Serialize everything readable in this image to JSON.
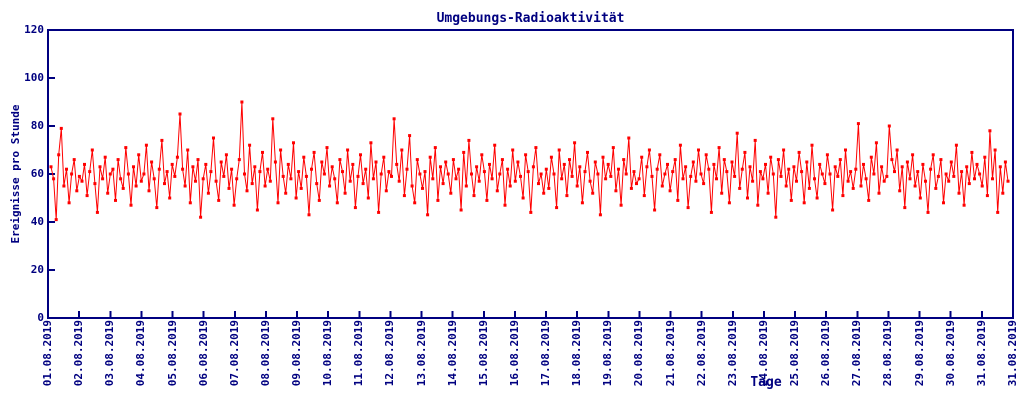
{
  "chart_data": {
    "type": "line",
    "style": "linespoints",
    "marker": "square",
    "title": "Umgebungs-Radioaktivität",
    "xlabel": "Tage",
    "ylabel": "Ereignisse pro Stunde",
    "ylim": [
      0,
      120
    ],
    "yticks": [
      0,
      20,
      40,
      60,
      80,
      100,
      120
    ],
    "grid": false,
    "legend": "none",
    "background": "#ffffff",
    "axis_color": "#000080",
    "xtick_labels": [
      "01.08.2019",
      "02.08.2019",
      "03.08.2019",
      "04.08.2019",
      "05.08.2019",
      "06.08.2019",
      "07.08.2019",
      "08.08.2019",
      "09.08.2019",
      "10.08.2019",
      "11.08.2019",
      "12.08.2019",
      "13.08.2019",
      "14.08.2019",
      "15.08.2019",
      "16.08.2019",
      "17.08.2019",
      "18.08.2019",
      "19.08.2019",
      "20.08.2019",
      "21.08.2019",
      "22.08.2019",
      "23.08.2019",
      "24.08.2019",
      "25.08.2019",
      "26.08.2019",
      "27.08.2019",
      "28.08.2019",
      "29.08.2019",
      "30.08.2019",
      "31.08.2019",
      "31.08.2019"
    ],
    "series": [
      {
        "name": "Umgebungs-Radioaktivität",
        "color": "#ff0000",
        "points_per_day": 12,
        "values": [
          63,
          58,
          41,
          68,
          79,
          55,
          62,
          48,
          60,
          66,
          53,
          59,
          57,
          64,
          51,
          61,
          70,
          56,
          44,
          63,
          58,
          67,
          52,
          60,
          62,
          49,
          66,
          58,
          54,
          71,
          60,
          47,
          63,
          55,
          68,
          57,
          60,
          72,
          53,
          65,
          58,
          46,
          62,
          74,
          56,
          61,
          50,
          64,
          59,
          67,
          85,
          62,
          55,
          70,
          48,
          63,
          57,
          66,
          42,
          58,
          64,
          52,
          61,
          75,
          57,
          49,
          65,
          59,
          68,
          54,
          62,
          47,
          58,
          66,
          90,
          60,
          53,
          72,
          56,
          63,
          45,
          61,
          69,
          55,
          62,
          57,
          83,
          65,
          48,
          70,
          59,
          52,
          64,
          58,
          73,
          50,
          61,
          54,
          67,
          59,
          43,
          62,
          69,
          56,
          49,
          65,
          60,
          71,
          55,
          63,
          58,
          48,
          66,
          61,
          52,
          70,
          57,
          64,
          46,
          59,
          68,
          56,
          62,
          50,
          73,
          58,
          65,
          44,
          60,
          67,
          53,
          61,
          59,
          83,
          64,
          57,
          70,
          51,
          62,
          76,
          55,
          48,
          66,
          60,
          54,
          61,
          43,
          67,
          58,
          71,
          49,
          63,
          56,
          65,
          60,
          52,
          66,
          58,
          62,
          45,
          69,
          55,
          74,
          60,
          51,
          63,
          57,
          68,
          61,
          49,
          64,
          58,
          72,
          53,
          60,
          66,
          47,
          62,
          55,
          70,
          57,
          65,
          59,
          50,
          68,
          61,
          44,
          63,
          71,
          56,
          60,
          52,
          62,
          54,
          67,
          60,
          46,
          70,
          58,
          64,
          51,
          66,
          59,
          73,
          55,
          63,
          48,
          61,
          69,
          57,
          52,
          65,
          60,
          43,
          67,
          58,
          64,
          59,
          71,
          53,
          62,
          47,
          66,
          60,
          75,
          54,
          61,
          56,
          58,
          67,
          51,
          63,
          70,
          59,
          45,
          62,
          68,
          55,
          60,
          64,
          53,
          61,
          66,
          49,
          72,
          58,
          63,
          46,
          59,
          65,
          57,
          70,
          60,
          56,
          68,
          62,
          44,
          64,
          58,
          71,
          52,
          66,
          61,
          48,
          65,
          59,
          77,
          54,
          62,
          69,
          50,
          63,
          57,
          74,
          47,
          61,
          58,
          64,
          52,
          67,
          60,
          42,
          66,
          59,
          70,
          55,
          62,
          49,
          63,
          57,
          69,
          61,
          48,
          65,
          54,
          72,
          58,
          50,
          64,
          60,
          56,
          68,
          60,
          45,
          63,
          59,
          66,
          51,
          70,
          57,
          61,
          54,
          62,
          81,
          55,
          64,
          58,
          49,
          67,
          60,
          73,
          52,
          63,
          57,
          59,
          80,
          66,
          61,
          70,
          53,
          63,
          46,
          65,
          58,
          68,
          55,
          61,
          50,
          64,
          57,
          44,
          62,
          68,
          54,
          59,
          66,
          48,
          60,
          57,
          65,
          59,
          72,
          52,
          61,
          47,
          63,
          56,
          69,
          58,
          64,
          60,
          55,
          67,
          51,
          78,
          58,
          70,
          44,
          63,
          52,
          65,
          57
        ]
      }
    ]
  }
}
